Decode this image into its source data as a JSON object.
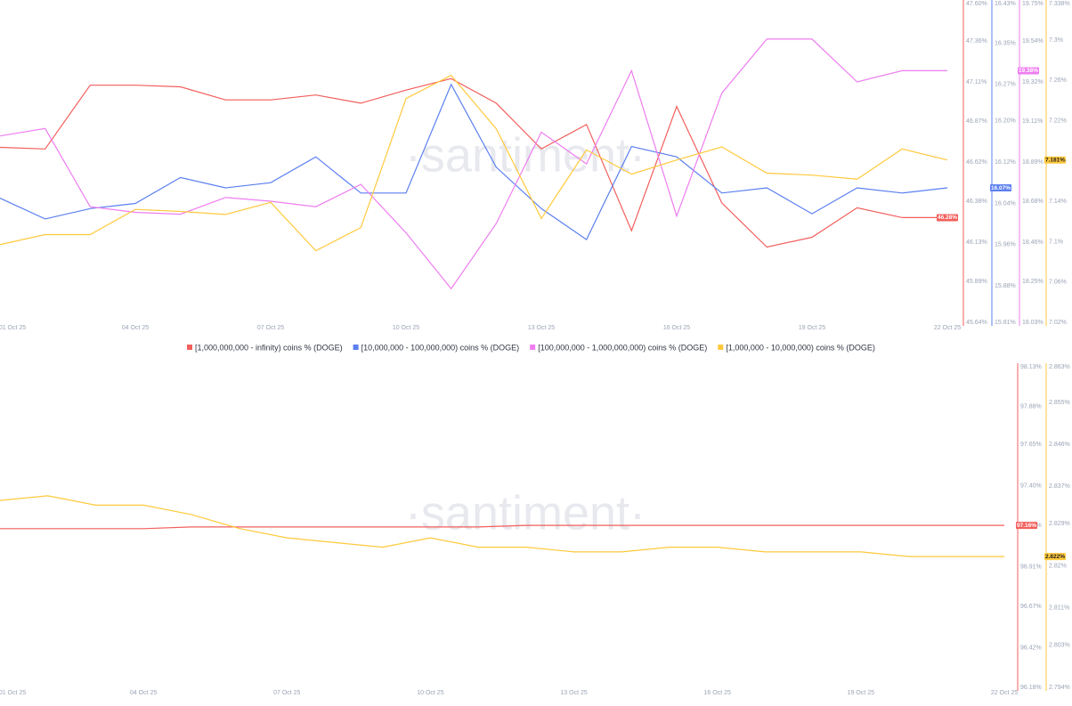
{
  "chart_data": [
    {
      "type": "line",
      "watermark": "·santiment·",
      "categories": [
        "01 Oct 25",
        null,
        null,
        "04 Oct 25",
        null,
        null,
        "07 Oct 25",
        null,
        null,
        "10 Oct 25",
        null,
        null,
        "13 Oct 25",
        null,
        null,
        "16 Oct 25",
        null,
        null,
        "19 Oct 25",
        null,
        null,
        "22 Oct 25"
      ],
      "series": [
        {
          "name": "[1,000,000,000 - infinity) coins % (DOGE)",
          "color": "#f25f5c",
          "last_label": "46.28%",
          "values": [
            46.71,
            46.7,
            47.09,
            47.09,
            47.08,
            47.0,
            47.0,
            47.03,
            46.98,
            47.06,
            47.13,
            46.98,
            46.7,
            46.85,
            46.2,
            46.96,
            46.37,
            46.1,
            46.16,
            46.34,
            46.28,
            46.28
          ],
          "ylim": [
            45.64,
            47.6
          ],
          "yticks": [
            {
              "value": 45.64,
              "label": "45.64%"
            },
            {
              "value": 45.89,
              "label": "45.89%"
            },
            {
              "value": 46.13,
              "label": "46.13%"
            },
            {
              "value": 46.38,
              "label": "46.38%"
            },
            {
              "value": 46.62,
              "label": "46.62%"
            },
            {
              "value": 46.87,
              "label": "46.87%"
            },
            {
              "value": 47.11,
              "label": "47.11%"
            },
            {
              "value": 47.36,
              "label": "47.36%"
            },
            {
              "value": 47.6,
              "label": "47.60%"
            }
          ]
        },
        {
          "name": "[10,000,000 - 100,000,000) coins % (DOGE)",
          "color": "#5b7ff0",
          "last_label": "16.07%",
          "values": [
            16.05,
            16.01,
            16.03,
            16.04,
            16.09,
            16.07,
            16.08,
            16.13,
            16.06,
            16.06,
            16.27,
            16.11,
            16.03,
            15.97,
            16.15,
            16.13,
            16.06,
            16.07,
            16.02,
            16.07,
            16.06,
            16.07
          ],
          "ylim": [
            15.81,
            16.43
          ],
          "yticks": [
            {
              "value": 15.81,
              "label": "15.81%"
            },
            {
              "value": 15.88,
              "label": "15.88%"
            },
            {
              "value": 15.96,
              "label": "15.96%"
            },
            {
              "value": 16.04,
              "label": "16.04%"
            },
            {
              "value": 16.12,
              "label": "16.12%"
            },
            {
              "value": 16.2,
              "label": "16.20%"
            },
            {
              "value": 16.27,
              "label": "16.27%"
            },
            {
              "value": 16.35,
              "label": "16.35%"
            },
            {
              "value": 16.43,
              "label": "16.43%"
            }
          ]
        },
        {
          "name": "[100,000,000 - 1,000,000,000) coins % (DOGE)",
          "color": "#ee7df0",
          "last_label": "19.38%",
          "values": [
            19.03,
            19.07,
            18.65,
            18.62,
            18.61,
            18.7,
            18.68,
            18.65,
            18.77,
            18.51,
            18.21,
            18.56,
            19.05,
            18.88,
            19.38,
            18.6,
            19.26,
            19.55,
            19.55,
            19.32,
            19.38,
            19.38
          ],
          "ylim": [
            18.03,
            19.75
          ],
          "yticks": [
            {
              "value": 18.03,
              "label": "18.03%"
            },
            {
              "value": 18.25,
              "label": "18.25%"
            },
            {
              "value": 18.46,
              "label": "18.46%"
            },
            {
              "value": 18.68,
              "label": "18.68%"
            },
            {
              "value": 18.89,
              "label": "18.89%"
            },
            {
              "value": 19.11,
              "label": "19.11%"
            },
            {
              "value": 19.32,
              "label": "19.32%"
            },
            {
              "value": 19.54,
              "label": "19.54%"
            },
            {
              "value": 19.75,
              "label": "19.75%"
            }
          ]
        },
        {
          "name": "[1,000,000 - 10,000,000) coins % (DOGE)",
          "color": "#ffc93c",
          "last_label": "7.181%",
          "values": [
            7.097,
            7.107,
            7.107,
            7.132,
            7.13,
            7.127,
            7.139,
            7.091,
            7.114,
            7.242,
            7.265,
            7.212,
            7.123,
            7.191,
            7.167,
            7.181,
            7.194,
            7.168,
            7.166,
            7.162,
            7.192,
            7.181
          ],
          "ylim": [
            7.02,
            7.338
          ],
          "yticks": [
            {
              "value": 7.02,
              "label": "7.02%"
            },
            {
              "value": 7.06,
              "label": "7.06%"
            },
            {
              "value": 7.1,
              "label": "7.1%"
            },
            {
              "value": 7.14,
              "label": "7.14%"
            },
            {
              "value": 7.18,
              "label": "7.18%"
            },
            {
              "value": 7.22,
              "label": "7.22%"
            },
            {
              "value": 7.26,
              "label": "7.26%"
            },
            {
              "value": 7.3,
              "label": "7.3%"
            },
            {
              "value": 7.338,
              "label": "7.338%"
            }
          ]
        }
      ]
    },
    {
      "type": "line",
      "watermark": "·santiment·",
      "categories": [
        "01 Oct 25",
        null,
        null,
        "04 Oct 25",
        null,
        null,
        "07 Oct 25",
        null,
        null,
        "10 Oct 25",
        null,
        null,
        "13 Oct 25",
        null,
        null,
        "16 Oct 25",
        null,
        null,
        "19 Oct 25",
        null,
        null,
        "22 Oct 25"
      ],
      "series": [
        {
          "color": "#f25f5c",
          "last_label": "97.16%",
          "values": [
            97.14,
            97.14,
            97.14,
            97.14,
            97.15,
            97.15,
            97.15,
            97.15,
            97.15,
            97.15,
            97.15,
            97.16,
            97.16,
            97.16,
            97.16,
            97.16,
            97.16,
            97.16,
            97.16,
            97.16,
            97.16,
            97.16
          ],
          "ylim": [
            96.18,
            98.13
          ],
          "yticks": [
            {
              "value": 96.18,
              "label": "96.18%"
            },
            {
              "value": 96.42,
              "label": "96.42%"
            },
            {
              "value": 96.67,
              "label": "96.67%"
            },
            {
              "value": 96.91,
              "label": "96.91%"
            },
            {
              "value": 97.16,
              "label": "97.16%"
            },
            {
              "value": 97.4,
              "label": "97.40%"
            },
            {
              "value": 97.65,
              "label": "97.65%"
            },
            {
              "value": 97.88,
              "label": "97.88%"
            },
            {
              "value": 98.13,
              "label": "98.13%"
            }
          ]
        },
        {
          "color": "#ffc93c",
          "last_label": "2.822%",
          "values": [
            2.834,
            2.835,
            2.833,
            2.833,
            2.831,
            2.828,
            2.826,
            2.825,
            2.824,
            2.826,
            2.824,
            2.824,
            2.823,
            2.823,
            2.824,
            2.824,
            2.823,
            2.823,
            2.823,
            2.822,
            2.822,
            2.822
          ],
          "ylim": [
            2.794,
            2.863
          ],
          "yticks": [
            {
              "value": 2.794,
              "label": "2.794%"
            },
            {
              "value": 2.803,
              "label": "2.803%"
            },
            {
              "value": 2.811,
              "label": "2.811%"
            },
            {
              "value": 2.82,
              "label": "2.82%"
            },
            {
              "value": 2.829,
              "label": "2.829%"
            },
            {
              "value": 2.837,
              "label": "2.837%"
            },
            {
              "value": 2.846,
              "label": "2.846%"
            },
            {
              "value": 2.855,
              "label": "2.855%"
            },
            {
              "value": 2.863,
              "label": "2.863%"
            }
          ]
        }
      ]
    }
  ]
}
